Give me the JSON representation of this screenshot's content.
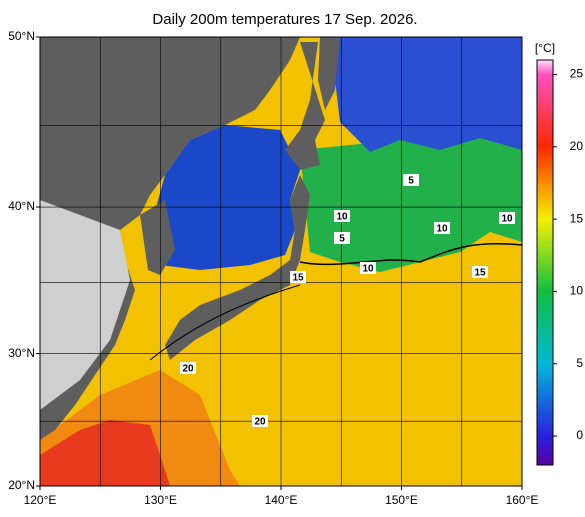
{
  "title": "Daily 200m temperatures 17 Sep. 2026.",
  "map": {
    "lonlim": [
      120,
      160
    ],
    "latlim": [
      20,
      50
    ],
    "lon_ticks": [
      {
        "value": 120,
        "label": "120°E"
      },
      {
        "value": 130,
        "label": "130°E"
      },
      {
        "value": 140,
        "label": "140°E"
      },
      {
        "value": 150,
        "label": "150°E"
      },
      {
        "value": 160,
        "label": "160°E"
      }
    ],
    "lat_ticks": [
      {
        "value": 20,
        "label": "20°N"
      },
      {
        "value": 30,
        "label": "30°N"
      },
      {
        "value": 40,
        "label": "40°N"
      },
      {
        "value": 50,
        "label": "50°N"
      }
    ],
    "contour_labels": [
      5,
      10,
      10,
      10,
      5,
      10,
      15,
      15,
      20,
      20
    ]
  },
  "colorbar": {
    "label": "[°C]",
    "range": [
      -2,
      26
    ],
    "ticks": [
      0,
      5,
      10,
      15,
      20,
      25
    ]
  }
}
